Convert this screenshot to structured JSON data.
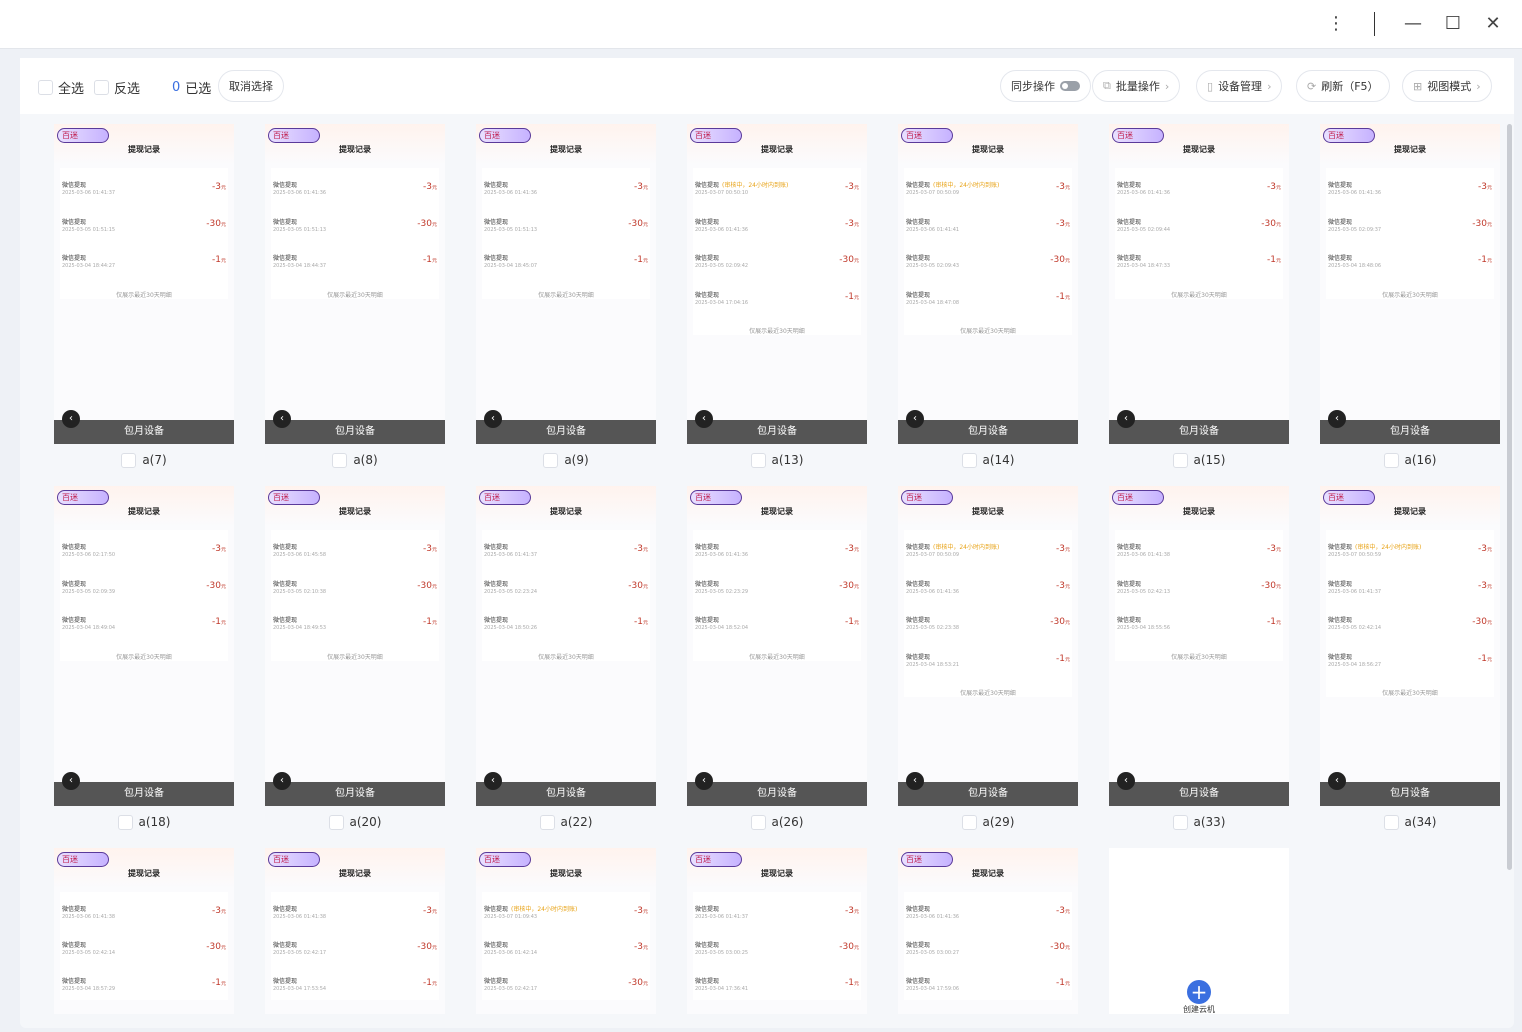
{
  "window": {
    "menu_icon": "more-vertical-icon",
    "min_icon": "minimize-icon",
    "max_icon": "maximize-icon",
    "close_icon": "close-icon"
  },
  "toolbar": {
    "select_all": "全选",
    "invert": "反选",
    "selected_count": "0",
    "selected_label": "已选",
    "cancel_selection": "取消选择",
    "sync": "同步操作",
    "sync_on": false,
    "batch": "批量操作",
    "device_mgmt": "设备管理",
    "refresh": "刷新（F5）",
    "view_mode": "视图模式"
  },
  "colors": {
    "accent": "#3a6fe0",
    "amount": "#c0392b",
    "pending": "#e8a317",
    "bar": "#555555"
  },
  "screen": {
    "logo": "百迷",
    "title": "提现记录",
    "record_label": "微信提现",
    "pending_note": "(审核中，24小时内到账)",
    "footer": "仅展示最近30天明细",
    "currency": "元",
    "bar_label": "包月设备"
  },
  "devices": [
    {
      "name": "a(7)",
      "records": [
        [
          "",
          "2025-03-06  01:41:37",
          "-3"
        ],
        [
          "",
          "2025-03-05  01:51:15",
          "-30"
        ],
        [
          "",
          "2025-03-04  18:44:27",
          "-1"
        ]
      ]
    },
    {
      "name": "a(8)",
      "records": [
        [
          "",
          "2025-03-06  01:41:36",
          "-3"
        ],
        [
          "",
          "2025-03-05  01:51:13",
          "-30"
        ],
        [
          "",
          "2025-03-04  18:44:37",
          "-1"
        ]
      ]
    },
    {
      "name": "a(9)",
      "records": [
        [
          "",
          "2025-03-06  01:41:36",
          "-3"
        ],
        [
          "",
          "2025-03-05  01:51:13",
          "-30"
        ],
        [
          "",
          "2025-03-04  18:45:07",
          "-1"
        ]
      ]
    },
    {
      "name": "a(13)",
      "records": [
        [
          "p",
          "2025-03-07  00:50:10",
          "-3"
        ],
        [
          "",
          "2025-03-06  01:41:36",
          "-3"
        ],
        [
          "",
          "2025-03-05  02:09:42",
          "-30"
        ],
        [
          "",
          "2025-03-04  17:04:16",
          "-1"
        ]
      ]
    },
    {
      "name": "a(14)",
      "records": [
        [
          "p",
          "2025-03-07  00:50:09",
          "-3"
        ],
        [
          "",
          "2025-03-06  01:41:41",
          "-3"
        ],
        [
          "",
          "2025-03-05  02:09:43",
          "-30"
        ],
        [
          "",
          "2025-03-04  18:47:08",
          "-1"
        ]
      ]
    },
    {
      "name": "a(15)",
      "records": [
        [
          "",
          "2025-03-06  01:41:36",
          "-3"
        ],
        [
          "",
          "2025-03-05  02:09:44",
          "-30"
        ],
        [
          "",
          "2025-03-04  18:47:33",
          "-1"
        ]
      ]
    },
    {
      "name": "a(16)",
      "records": [
        [
          "",
          "2025-03-06  01:41:36",
          "-3"
        ],
        [
          "",
          "2025-03-05  02:09:37",
          "-30"
        ],
        [
          "",
          "2025-03-04  18:48:06",
          "-1"
        ]
      ]
    },
    {
      "name": "a(18)",
      "records": [
        [
          "",
          "2025-03-06  02:17:50",
          "-3"
        ],
        [
          "",
          "2025-03-05  02:09:39",
          "-30"
        ],
        [
          "",
          "2025-03-04  18:49:04",
          "-1"
        ]
      ]
    },
    {
      "name": "a(20)",
      "records": [
        [
          "",
          "2025-03-06  01:45:58",
          "-3"
        ],
        [
          "",
          "2025-03-05  02:10:38",
          "-30"
        ],
        [
          "",
          "2025-03-04  18:49:53",
          "-1"
        ]
      ]
    },
    {
      "name": "a(22)",
      "records": [
        [
          "",
          "2025-03-06  01:41:37",
          "-3"
        ],
        [
          "",
          "2025-03-05  02:23:24",
          "-30"
        ],
        [
          "",
          "2025-03-04  18:50:26",
          "-1"
        ]
      ]
    },
    {
      "name": "a(26)",
      "records": [
        [
          "",
          "2025-03-06  01:41:36",
          "-3"
        ],
        [
          "",
          "2025-03-05  02:23:29",
          "-30"
        ],
        [
          "",
          "2025-03-04  18:52:04",
          "-1"
        ]
      ]
    },
    {
      "name": "a(29)",
      "records": [
        [
          "p",
          "2025-03-07  00:50:09",
          "-3"
        ],
        [
          "",
          "2025-03-06  01:41:36",
          "-3"
        ],
        [
          "",
          "2025-03-05  02:23:38",
          "-30"
        ],
        [
          "",
          "2025-03-04  18:53:21",
          "-1"
        ]
      ]
    },
    {
      "name": "a(33)",
      "records": [
        [
          "",
          "2025-03-06  01:41:38",
          "-3"
        ],
        [
          "",
          "2025-03-05  02:42:13",
          "-30"
        ],
        [
          "",
          "2025-03-04  18:55:56",
          "-1"
        ]
      ]
    },
    {
      "name": "a(34)",
      "records": [
        [
          "p",
          "2025-03-07  00:50:59",
          "-3"
        ],
        [
          "",
          "2025-03-06  01:41:37",
          "-3"
        ],
        [
          "",
          "2025-03-05  02:42:14",
          "-30"
        ],
        [
          "",
          "2025-03-04  18:56:27",
          "-1"
        ]
      ]
    },
    {
      "name": "",
      "records": [
        [
          "",
          "2025-03-06  01:41:38",
          "-3"
        ],
        [
          "",
          "2025-03-05  02:42:14",
          "-30"
        ],
        [
          "",
          "2025-03-04  18:57:29",
          "-1"
        ]
      ]
    },
    {
      "name": "",
      "records": [
        [
          "",
          "2025-03-06  01:41:38",
          "-3"
        ],
        [
          "",
          "2025-03-05  02:42:17",
          "-30"
        ],
        [
          "",
          "2025-03-04  17:53:54",
          "-1"
        ]
      ]
    },
    {
      "name": "",
      "records": [
        [
          "p",
          "2025-03-07  01:09:43",
          "-3"
        ],
        [
          "",
          "2025-03-06  01:42:14",
          "-3"
        ],
        [
          "",
          "2025-03-05  02:42:17",
          "-30"
        ]
      ]
    },
    {
      "name": "",
      "records": [
        [
          "",
          "2025-03-06  01:41:37",
          "-3"
        ],
        [
          "",
          "2025-03-05  03:00:25",
          "-30"
        ],
        [
          "",
          "2025-03-04  17:36:41",
          "-1"
        ]
      ]
    },
    {
      "name": "",
      "records": [
        [
          "",
          "2025-03-06  01:41:36",
          "-3"
        ],
        [
          "",
          "2025-03-05  03:00:27",
          "-30"
        ],
        [
          "",
          "2025-03-04  17:59:06",
          "-1"
        ]
      ]
    }
  ],
  "add_card": {
    "label": "创建云机",
    "icon": "plus-circle-icon"
  }
}
